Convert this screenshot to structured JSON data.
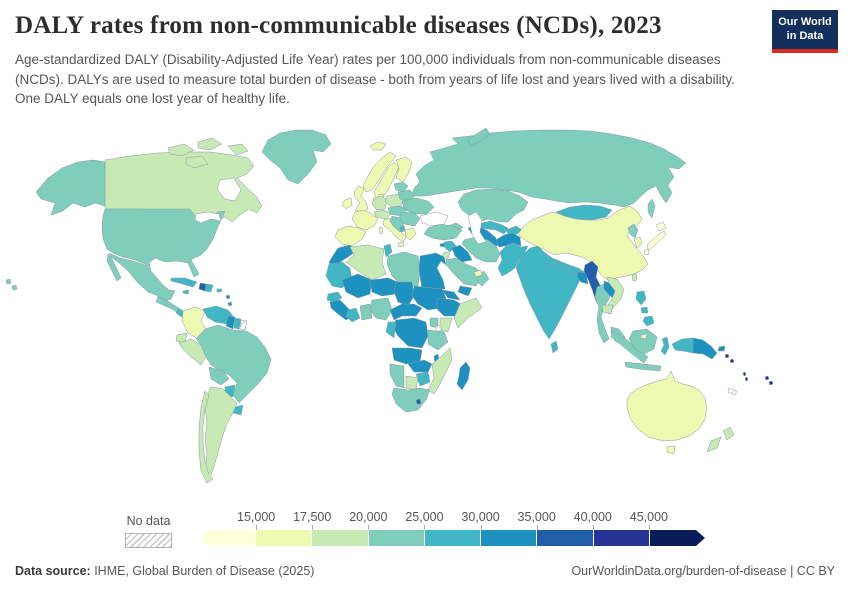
{
  "header": {
    "title": "DALY rates from non-communicable diseases (NCDs), 2023",
    "subtitle": "Age-standardized DALY (Disability-Adjusted Life Year) rates per 100,000 individuals from non-communicable diseases (NCDs). DALYs are used to measure total burden of disease - both from years of life lost and years lived with a disability. One DALY equals one lost year of healthy life.",
    "logo": {
      "line1": "Our World",
      "line2": "in Data",
      "bg": "#12305b",
      "stripe": "#d42b21"
    }
  },
  "legend": {
    "no_data_label": "No data",
    "ticks": [
      "15,000",
      "17,500",
      "20,000",
      "25,000",
      "30,000",
      "35,000",
      "40,000",
      "45,000"
    ]
  },
  "footer": {
    "source_label": "Data source:",
    "source_text": " IHME, Global Burden of Disease (2025)",
    "right_text": "OurWorldinData.org/burden-of-disease | CC BY"
  },
  "chart_data": {
    "type": "heatmap",
    "subtype": "choropleth-world-map",
    "title": "DALY rates from non-communicable diseases (NCDs), 2023",
    "unit": "Age-standardized DALYs per 100,000 individuals",
    "legend_position": "bottom",
    "legend_bins": [
      "<15,000",
      "15,000-17,500",
      "17,500-20,000",
      "20,000-25,000",
      "25,000-30,000",
      "30,000-35,000",
      "35,000-40,000",
      "40,000-45,000",
      ">45,000"
    ],
    "palette": [
      "#ffffd9",
      "#edf8b1",
      "#c7e9b4",
      "#7fcdbb",
      "#41b6c4",
      "#1d91c0",
      "#225ea8",
      "#253494",
      "#081d58"
    ],
    "no_data_fill": "hatch",
    "border_color": "#8b99a4",
    "regions": {
      "greenland": 3,
      "canada": 2,
      "canada-arctic-1": 2,
      "canada-arctic-2": 2,
      "canada-arctic-3": 2,
      "canada-arctic-4": 2,
      "alaska": 3,
      "usa": 3,
      "hawaii-1": 3,
      "hawaii-2": 3,
      "mexico": 3,
      "central-america": 3,
      "nicaragua": 4,
      "cuba": 4,
      "jamaica": 4,
      "haiti": 6,
      "dominican-republic": 4,
      "puerto-rico": 4,
      "lesser-antilles-1": 5,
      "lesser-antilles-2": 5,
      "colombia": 1,
      "venezuela": 4,
      "guyana": 5,
      "suriname": 4,
      "french-guiana": -1,
      "ecuador": 2,
      "peru": 2,
      "brazil": 3,
      "bolivia": 3,
      "paraguay": 4,
      "uruguay": 4,
      "argentina": 2,
      "chile": 2,
      "iceland": 1,
      "ireland": 1,
      "uk": 1,
      "norway": 1,
      "sweden": 1,
      "finland": 1,
      "denmark": 1,
      "france": 1,
      "iberia": 1,
      "germany": 2,
      "alpine": 2,
      "italy": 1,
      "sardinia": 1,
      "sicily": 1,
      "poland": 2,
      "baltics": 3,
      "belarus": 3,
      "ukraine": 3,
      "czech-hungary": 3,
      "romania-bulgaria": 3,
      "balkans": 3,
      "albania": 4,
      "greece": 1,
      "russia": 3,
      "novaya-zemlya": 3,
      "sakhalin": 3,
      "kazakhstan": 3,
      "uzbekistan": 4,
      "turkmenistan": 5,
      "kyrgyz-tajik": 4,
      "caucasus": 3,
      "turkey": 3,
      "cyprus": 5,
      "syria": 4,
      "iraq": 5,
      "iran": 3,
      "jordan": 2,
      "saudi-arabia": 3,
      "yemen": 5,
      "oman": 3,
      "uae": 1,
      "afghanistan": 5,
      "pakistan": 4,
      "india": 4,
      "nepal": 4,
      "bhutan": 4,
      "bangladesh": 5,
      "sri-lanka": 4,
      "myanmar": 6,
      "thailand": 3,
      "laos": 5,
      "vietnam": 2,
      "cambodia": 2,
      "malaysia": 3,
      "sumatra": 3,
      "java": 3,
      "borneo": 3,
      "brunei": 1,
      "sulawesi": 4,
      "philippines-1": 4,
      "philippines-2": 4,
      "philippines-3": 4,
      "taiwan": 2,
      "hainan": 3,
      "mongolia": 4,
      "china": 1,
      "north-korea": 3,
      "south-korea": 1,
      "japan-hokkaido": 0,
      "japan-honshu": 0,
      "japan-kyushu": 0,
      "west-papua": 4,
      "papua-new-guinea": 5,
      "new-britain": 5,
      "solomon-1": 7,
      "solomon-2": 7,
      "vanuatu-1": 7,
      "vanuatu-2": 7,
      "fiji-1": 7,
      "fiji-2": 7,
      "new-caledonia": -1,
      "australia": 1,
      "tasmania": 1,
      "nz-north": 2,
      "nz-south": 2,
      "morocco": 5,
      "algeria": 2,
      "tunisia": 4,
      "libya": 3,
      "egypt": 5,
      "mauritania": 4,
      "mali": 5,
      "niger": 5,
      "chad": 5,
      "sudan": 5,
      "senegal": 4,
      "guinea": 5,
      "ivory-coast": 4,
      "ghana": 3,
      "nigeria": 3,
      "cameroon-car": 5,
      "ethiopia": 5,
      "eritrea": 5,
      "somalia": 2,
      "kenya": 2,
      "uganda": 3,
      "drc": 5,
      "congo-gabon": 4,
      "tanzania": 3,
      "angola": 5,
      "zambia": 5,
      "malawi": 5,
      "mozambique": 2,
      "zimbabwe": 4,
      "botswana": 2,
      "namibia": 3,
      "south-africa": 3,
      "lesotho": 6,
      "madagascar": 5
    }
  }
}
